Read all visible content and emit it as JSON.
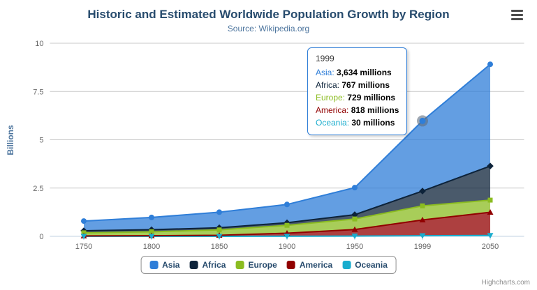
{
  "header": {
    "title": "Historic and Estimated Worldwide Population Growth by Region",
    "subtitle": "Source: Wikipedia.org",
    "menu_icon": "hamburger-icon"
  },
  "chart_data": {
    "type": "area",
    "stacked": true,
    "title": "Historic and Estimated Worldwide Population Growth by Region",
    "subtitle": "Source: Wikipedia.org",
    "categories": [
      1750,
      1800,
      1850,
      1900,
      1950,
      1999,
      2050
    ],
    "series": [
      {
        "name": "Asia",
        "color": "#2f7ed8",
        "marker": "circle",
        "values": [
          502,
          635,
          809,
          947,
          1402,
          3634,
          5268
        ]
      },
      {
        "name": "Africa",
        "color": "#0d233a",
        "marker": "diamond",
        "values": [
          106,
          107,
          111,
          133,
          221,
          767,
          1766
        ]
      },
      {
        "name": "Europe",
        "color": "#8bbc21",
        "marker": "square",
        "values": [
          163,
          203,
          276,
          408,
          547,
          729,
          628
        ]
      },
      {
        "name": "America",
        "color": "#910000",
        "marker": "triangle",
        "values": [
          18,
          31,
          54,
          156,
          339,
          818,
          1201
        ]
      },
      {
        "name": "Oceania",
        "color": "#1aadce",
        "marker": "triangle-down",
        "values": [
          2,
          2,
          2,
          6,
          13,
          30,
          46
        ]
      }
    ],
    "unit": "millions",
    "xlabel": "",
    "ylabel": "Billions",
    "yticks": [
      0,
      2.5,
      5,
      7.5,
      10
    ],
    "ylim": [
      0,
      10
    ],
    "grid": true,
    "legend_position": "bottom"
  },
  "hover": {
    "category": 1999,
    "series": "Asia"
  },
  "tooltip": {
    "header": "1999",
    "rows": [
      {
        "series": "Asia",
        "value": "3,634 millions"
      },
      {
        "series": "Africa",
        "value": "767 millions"
      },
      {
        "series": "Europe",
        "value": "729 millions"
      },
      {
        "series": "America",
        "value": "818 millions"
      },
      {
        "series": "Oceania",
        "value": "30 millions"
      }
    ]
  },
  "credits": "Highcharts.com"
}
